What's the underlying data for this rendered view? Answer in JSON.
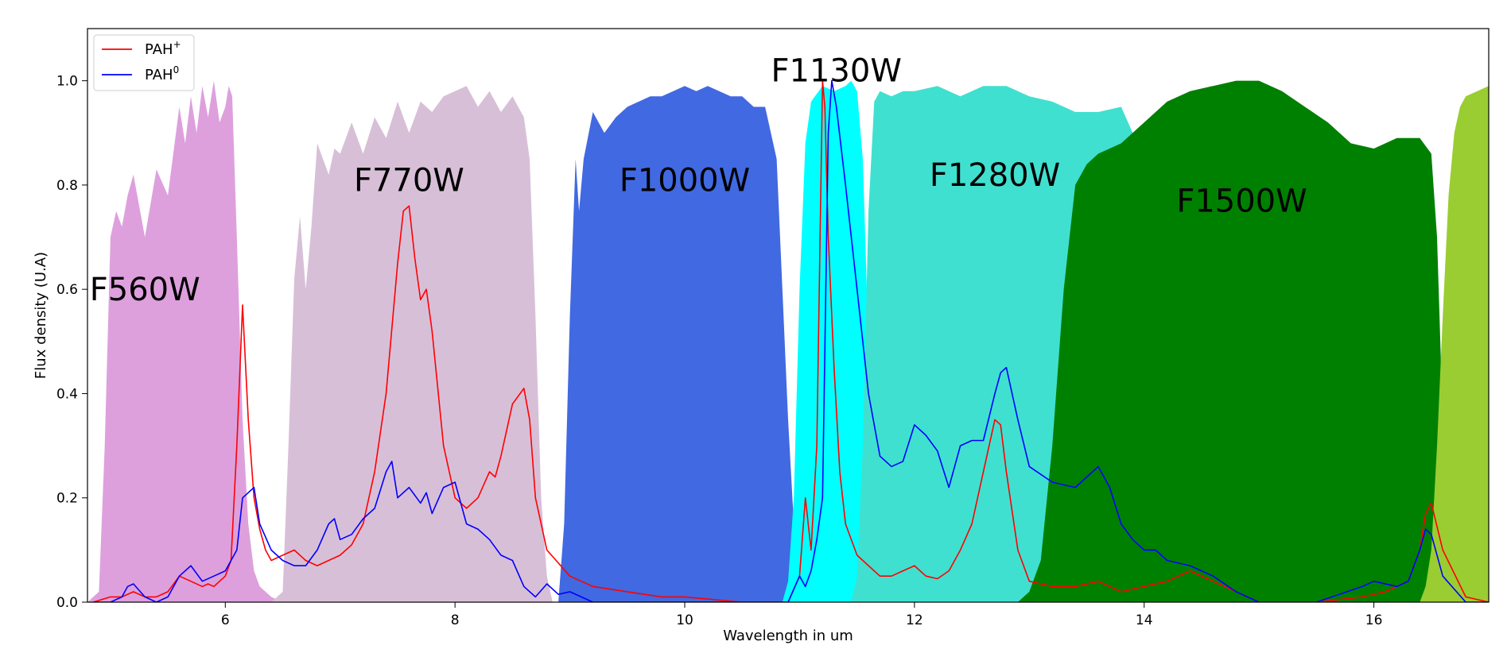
{
  "chart_data": {
    "type": "area",
    "title": "",
    "xlabel": "Wavelength in um",
    "ylabel": "Flux density (U.A)",
    "xlim": [
      4.8,
      17.0
    ],
    "ylim": [
      0.0,
      1.1
    ],
    "x_ticks": [
      6,
      8,
      10,
      12,
      14,
      16
    ],
    "x_tick_labels": [
      "6",
      "8",
      "10",
      "12",
      "14",
      "16"
    ],
    "y_ticks": [
      0.0,
      0.2,
      0.4,
      0.6,
      0.8,
      1.0
    ],
    "y_tick_labels": [
      "0.0",
      "0.2",
      "0.4",
      "0.6",
      "0.8",
      "1.0"
    ],
    "grid": false,
    "legend": {
      "placement": "top-left",
      "entries": [
        {
          "base": "PAH",
          "sup": "+",
          "color": "#ff0000"
        },
        {
          "base": "PAH",
          "sup": "0",
          "color": "#0000ff"
        }
      ]
    },
    "filters": [
      {
        "label": "F560W",
        "color": "#dda0dd",
        "label_x": 5.3,
        "label_y": 0.6,
        "x": [
          4.8,
          4.9,
          4.95,
          5.0,
          5.05,
          5.1,
          5.15,
          5.2,
          5.3,
          5.4,
          5.5,
          5.6,
          5.65,
          5.7,
          5.75,
          5.8,
          5.85,
          5.9,
          5.95,
          6.0,
          6.03,
          6.06,
          6.1,
          6.15,
          6.2,
          6.25,
          6.3,
          6.4,
          6.5
        ],
        "y": [
          0.0,
          0.02,
          0.3,
          0.7,
          0.75,
          0.72,
          0.78,
          0.82,
          0.7,
          0.83,
          0.78,
          0.95,
          0.88,
          0.97,
          0.9,
          0.99,
          0.93,
          1.0,
          0.92,
          0.95,
          0.99,
          0.97,
          0.7,
          0.35,
          0.15,
          0.06,
          0.03,
          0.01,
          0.0
        ]
      },
      {
        "label": "F770W",
        "color": "#d8bfd8",
        "label_x": 7.6,
        "label_y": 0.81,
        "x": [
          6.4,
          6.5,
          6.55,
          6.6,
          6.65,
          6.7,
          6.75,
          6.8,
          6.85,
          6.9,
          6.95,
          7.0,
          7.1,
          7.2,
          7.3,
          7.4,
          7.5,
          7.6,
          7.7,
          7.8,
          7.9,
          8.0,
          8.1,
          8.2,
          8.3,
          8.4,
          8.5,
          8.6,
          8.65,
          8.7,
          8.75,
          8.8,
          8.85
        ],
        "y": [
          0.0,
          0.02,
          0.3,
          0.62,
          0.74,
          0.6,
          0.72,
          0.88,
          0.85,
          0.82,
          0.87,
          0.86,
          0.92,
          0.86,
          0.93,
          0.89,
          0.96,
          0.9,
          0.96,
          0.94,
          0.97,
          0.98,
          0.99,
          0.95,
          0.98,
          0.94,
          0.97,
          0.93,
          0.85,
          0.55,
          0.2,
          0.05,
          0.0
        ]
      },
      {
        "label": "F1000W",
        "color": "#4169e1",
        "label_x": 10.0,
        "label_y": 0.81,
        "x": [
          8.9,
          8.95,
          9.0,
          9.05,
          9.08,
          9.12,
          9.2,
          9.3,
          9.4,
          9.5,
          9.6,
          9.7,
          9.8,
          9.9,
          10.0,
          10.1,
          10.2,
          10.3,
          10.4,
          10.5,
          10.6,
          10.7,
          10.8,
          10.85,
          10.9,
          10.95,
          11.0,
          11.05
        ],
        "y": [
          0.0,
          0.15,
          0.55,
          0.85,
          0.75,
          0.85,
          0.94,
          0.9,
          0.93,
          0.95,
          0.96,
          0.97,
          0.97,
          0.98,
          0.99,
          0.98,
          0.99,
          0.98,
          0.97,
          0.97,
          0.95,
          0.95,
          0.85,
          0.6,
          0.35,
          0.15,
          0.04,
          0.0
        ]
      },
      {
        "label": "F1130W",
        "color": "#00ffff",
        "label_x": 11.32,
        "label_y": 1.02,
        "x": [
          10.85,
          10.9,
          10.95,
          11.0,
          11.05,
          11.1,
          11.2,
          11.3,
          11.4,
          11.45,
          11.5,
          11.55,
          11.6,
          11.65,
          11.7,
          11.75
        ],
        "y": [
          0.0,
          0.04,
          0.2,
          0.6,
          0.88,
          0.96,
          0.99,
          0.98,
          0.99,
          1.0,
          0.98,
          0.85,
          0.5,
          0.15,
          0.03,
          0.0
        ]
      },
      {
        "label": "F1280W",
        "color": "#40e0d0",
        "label_x": 12.7,
        "label_y": 0.82,
        "x": [
          11.45,
          11.5,
          11.55,
          11.6,
          11.65,
          11.7,
          11.8,
          11.9,
          12.0,
          12.2,
          12.4,
          12.6,
          12.8,
          13.0,
          13.2,
          13.4,
          13.6,
          13.8,
          13.9,
          13.95,
          14.0,
          14.05,
          14.1
        ],
        "y": [
          0.0,
          0.05,
          0.3,
          0.75,
          0.96,
          0.98,
          0.97,
          0.98,
          0.98,
          0.99,
          0.97,
          0.99,
          0.99,
          0.97,
          0.96,
          0.94,
          0.94,
          0.95,
          0.9,
          0.7,
          0.4,
          0.15,
          0.0
        ]
      },
      {
        "label": "F1500W",
        "color": "#008000",
        "label_x": 14.85,
        "label_y": 0.77,
        "x": [
          12.9,
          13.0,
          13.1,
          13.2,
          13.3,
          13.4,
          13.5,
          13.6,
          13.8,
          14.0,
          14.2,
          14.4,
          14.6,
          14.8,
          15.0,
          15.2,
          15.4,
          15.6,
          15.8,
          16.0,
          16.2,
          16.4,
          16.5,
          16.55,
          16.6,
          16.65,
          16.7
        ],
        "y": [
          0.0,
          0.02,
          0.08,
          0.3,
          0.6,
          0.8,
          0.84,
          0.86,
          0.88,
          0.92,
          0.96,
          0.98,
          0.99,
          1.0,
          1.0,
          0.98,
          0.95,
          0.92,
          0.88,
          0.87,
          0.89,
          0.89,
          0.86,
          0.7,
          0.35,
          0.1,
          0.0
        ]
      },
      {
        "label": "",
        "color": "#9acd32",
        "label_x": null,
        "label_y": null,
        "x": [
          16.4,
          16.45,
          16.5,
          16.55,
          16.6,
          16.65,
          16.7,
          16.75,
          16.8,
          16.9,
          17.0
        ],
        "y": [
          0.0,
          0.03,
          0.1,
          0.3,
          0.55,
          0.78,
          0.9,
          0.95,
          0.97,
          0.98,
          0.99
        ]
      }
    ],
    "series": [
      {
        "name": "PAH+",
        "color": "#ff0000",
        "x": [
          4.85,
          5.0,
          5.1,
          5.2,
          5.3,
          5.4,
          5.5,
          5.6,
          5.7,
          5.8,
          5.85,
          5.9,
          6.0,
          6.05,
          6.1,
          6.15,
          6.2,
          6.25,
          6.3,
          6.35,
          6.4,
          6.5,
          6.6,
          6.7,
          6.8,
          6.9,
          7.0,
          7.1,
          7.2,
          7.3,
          7.4,
          7.5,
          7.55,
          7.6,
          7.65,
          7.7,
          7.75,
          7.8,
          7.9,
          8.0,
          8.1,
          8.2,
          8.3,
          8.35,
          8.4,
          8.5,
          8.6,
          8.65,
          8.7,
          8.8,
          9.0,
          9.2,
          9.5,
          9.8,
          10.0,
          10.5,
          10.9,
          11.0,
          11.05,
          11.1,
          11.15,
          11.2,
          11.22,
          11.25,
          11.3,
          11.35,
          11.4,
          11.5,
          11.6,
          11.7,
          11.8,
          11.9,
          12.0,
          12.1,
          12.2,
          12.3,
          12.4,
          12.5,
          12.6,
          12.7,
          12.75,
          12.8,
          12.9,
          13.0,
          13.2,
          13.4,
          13.6,
          13.8,
          14.0,
          14.2,
          14.4,
          14.6,
          15.0,
          15.5,
          15.9,
          16.1,
          16.3,
          16.4,
          16.45,
          16.5,
          16.6,
          16.8,
          17.0
        ],
        "y": [
          0.0,
          0.01,
          0.01,
          0.02,
          0.01,
          0.01,
          0.02,
          0.05,
          0.04,
          0.03,
          0.035,
          0.03,
          0.05,
          0.08,
          0.3,
          0.57,
          0.35,
          0.2,
          0.14,
          0.1,
          0.08,
          0.09,
          0.1,
          0.08,
          0.07,
          0.08,
          0.09,
          0.11,
          0.15,
          0.25,
          0.4,
          0.65,
          0.75,
          0.76,
          0.66,
          0.58,
          0.6,
          0.52,
          0.3,
          0.2,
          0.18,
          0.2,
          0.25,
          0.24,
          0.28,
          0.38,
          0.41,
          0.35,
          0.2,
          0.1,
          0.05,
          0.03,
          0.02,
          0.01,
          0.01,
          0.0,
          0.0,
          0.05,
          0.2,
          0.1,
          0.3,
          1.0,
          0.95,
          0.7,
          0.45,
          0.25,
          0.15,
          0.09,
          0.07,
          0.05,
          0.05,
          0.06,
          0.07,
          0.05,
          0.045,
          0.06,
          0.1,
          0.15,
          0.25,
          0.35,
          0.34,
          0.25,
          0.1,
          0.04,
          0.03,
          0.03,
          0.04,
          0.02,
          0.03,
          0.04,
          0.06,
          0.04,
          0.0,
          0.0,
          0.01,
          0.02,
          0.04,
          0.1,
          0.17,
          0.19,
          0.1,
          0.01,
          0.0
        ]
      },
      {
        "name": "PAH0",
        "color": "#0000ff",
        "x": [
          4.85,
          5.0,
          5.1,
          5.15,
          5.2,
          5.3,
          5.4,
          5.5,
          5.6,
          5.7,
          5.8,
          5.9,
          6.0,
          6.1,
          6.15,
          6.2,
          6.25,
          6.3,
          6.4,
          6.5,
          6.6,
          6.7,
          6.8,
          6.9,
          6.95,
          7.0,
          7.1,
          7.2,
          7.3,
          7.4,
          7.45,
          7.5,
          7.6,
          7.7,
          7.75,
          7.8,
          7.9,
          8.0,
          8.1,
          8.2,
          8.3,
          8.4,
          8.5,
          8.6,
          8.7,
          8.8,
          8.9,
          9.0,
          9.1,
          9.2,
          9.5,
          10.0,
          10.5,
          10.9,
          11.0,
          11.05,
          11.1,
          11.15,
          11.2,
          11.25,
          11.28,
          11.32,
          11.4,
          11.5,
          11.6,
          11.7,
          11.8,
          11.9,
          12.0,
          12.1,
          12.2,
          12.3,
          12.4,
          12.5,
          12.6,
          12.7,
          12.75,
          12.8,
          12.9,
          13.0,
          13.2,
          13.4,
          13.5,
          13.6,
          13.7,
          13.8,
          13.9,
          14.0,
          14.1,
          14.2,
          14.4,
          14.6,
          14.8,
          15.0,
          15.5,
          15.9,
          16.0,
          16.2,
          16.3,
          16.4,
          16.45,
          16.5,
          16.6,
          16.8,
          17.0
        ],
        "y": [
          0.0,
          0.0,
          0.01,
          0.03,
          0.035,
          0.01,
          0.0,
          0.01,
          0.05,
          0.07,
          0.04,
          0.05,
          0.06,
          0.1,
          0.2,
          0.21,
          0.22,
          0.15,
          0.1,
          0.08,
          0.07,
          0.07,
          0.1,
          0.15,
          0.16,
          0.12,
          0.13,
          0.16,
          0.18,
          0.25,
          0.27,
          0.2,
          0.22,
          0.19,
          0.21,
          0.17,
          0.22,
          0.23,
          0.15,
          0.14,
          0.12,
          0.09,
          0.08,
          0.03,
          0.01,
          0.035,
          0.015,
          0.02,
          0.01,
          0.0,
          0.0,
          0.0,
          0.0,
          0.0,
          0.05,
          0.03,
          0.06,
          0.12,
          0.2,
          0.9,
          1.0,
          0.95,
          0.8,
          0.6,
          0.4,
          0.28,
          0.26,
          0.27,
          0.34,
          0.32,
          0.29,
          0.22,
          0.3,
          0.31,
          0.31,
          0.4,
          0.44,
          0.45,
          0.35,
          0.26,
          0.23,
          0.22,
          0.24,
          0.26,
          0.22,
          0.15,
          0.12,
          0.1,
          0.1,
          0.08,
          0.07,
          0.05,
          0.02,
          0.0,
          0.0,
          0.03,
          0.04,
          0.03,
          0.04,
          0.1,
          0.14,
          0.13,
          0.05,
          0.0,
          0.0
        ]
      }
    ]
  }
}
